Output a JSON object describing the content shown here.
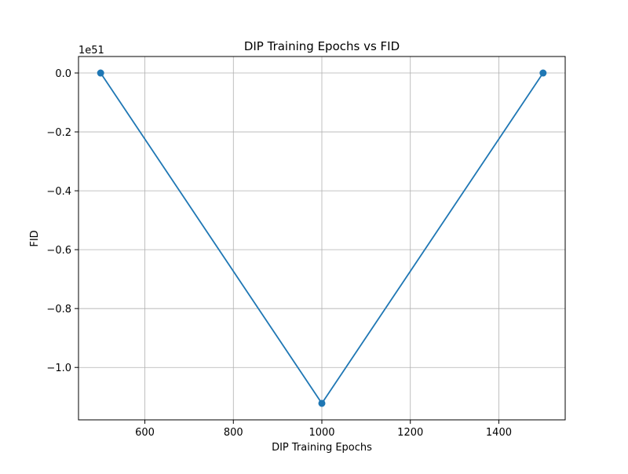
{
  "chart_data": {
    "type": "line",
    "title": "DIP Training Epochs vs FID",
    "xlabel": "DIP Training Epochs",
    "ylabel": "FID",
    "y_offset_label": "1e51",
    "xlim": [
      450,
      1550
    ],
    "ylim": [
      -1.178,
      0.056
    ],
    "x_ticks": [
      600,
      800,
      1000,
      1200,
      1400
    ],
    "x_tick_labels": [
      "600",
      "800",
      "1000",
      "1200",
      "1400"
    ],
    "y_ticks": [
      0.0,
      -0.2,
      -0.4,
      -0.6,
      -0.8,
      -1.0
    ],
    "y_tick_labels": [
      "0.0",
      "−0.2",
      "−0.4",
      "−0.6",
      "−0.8",
      "−1.0"
    ],
    "grid": true,
    "series": [
      {
        "x": [
          500,
          1000,
          1500
        ],
        "y": [
          0.0,
          -1.122,
          0.0
        ],
        "color": "#1f77b4",
        "marker": "circle"
      }
    ]
  }
}
